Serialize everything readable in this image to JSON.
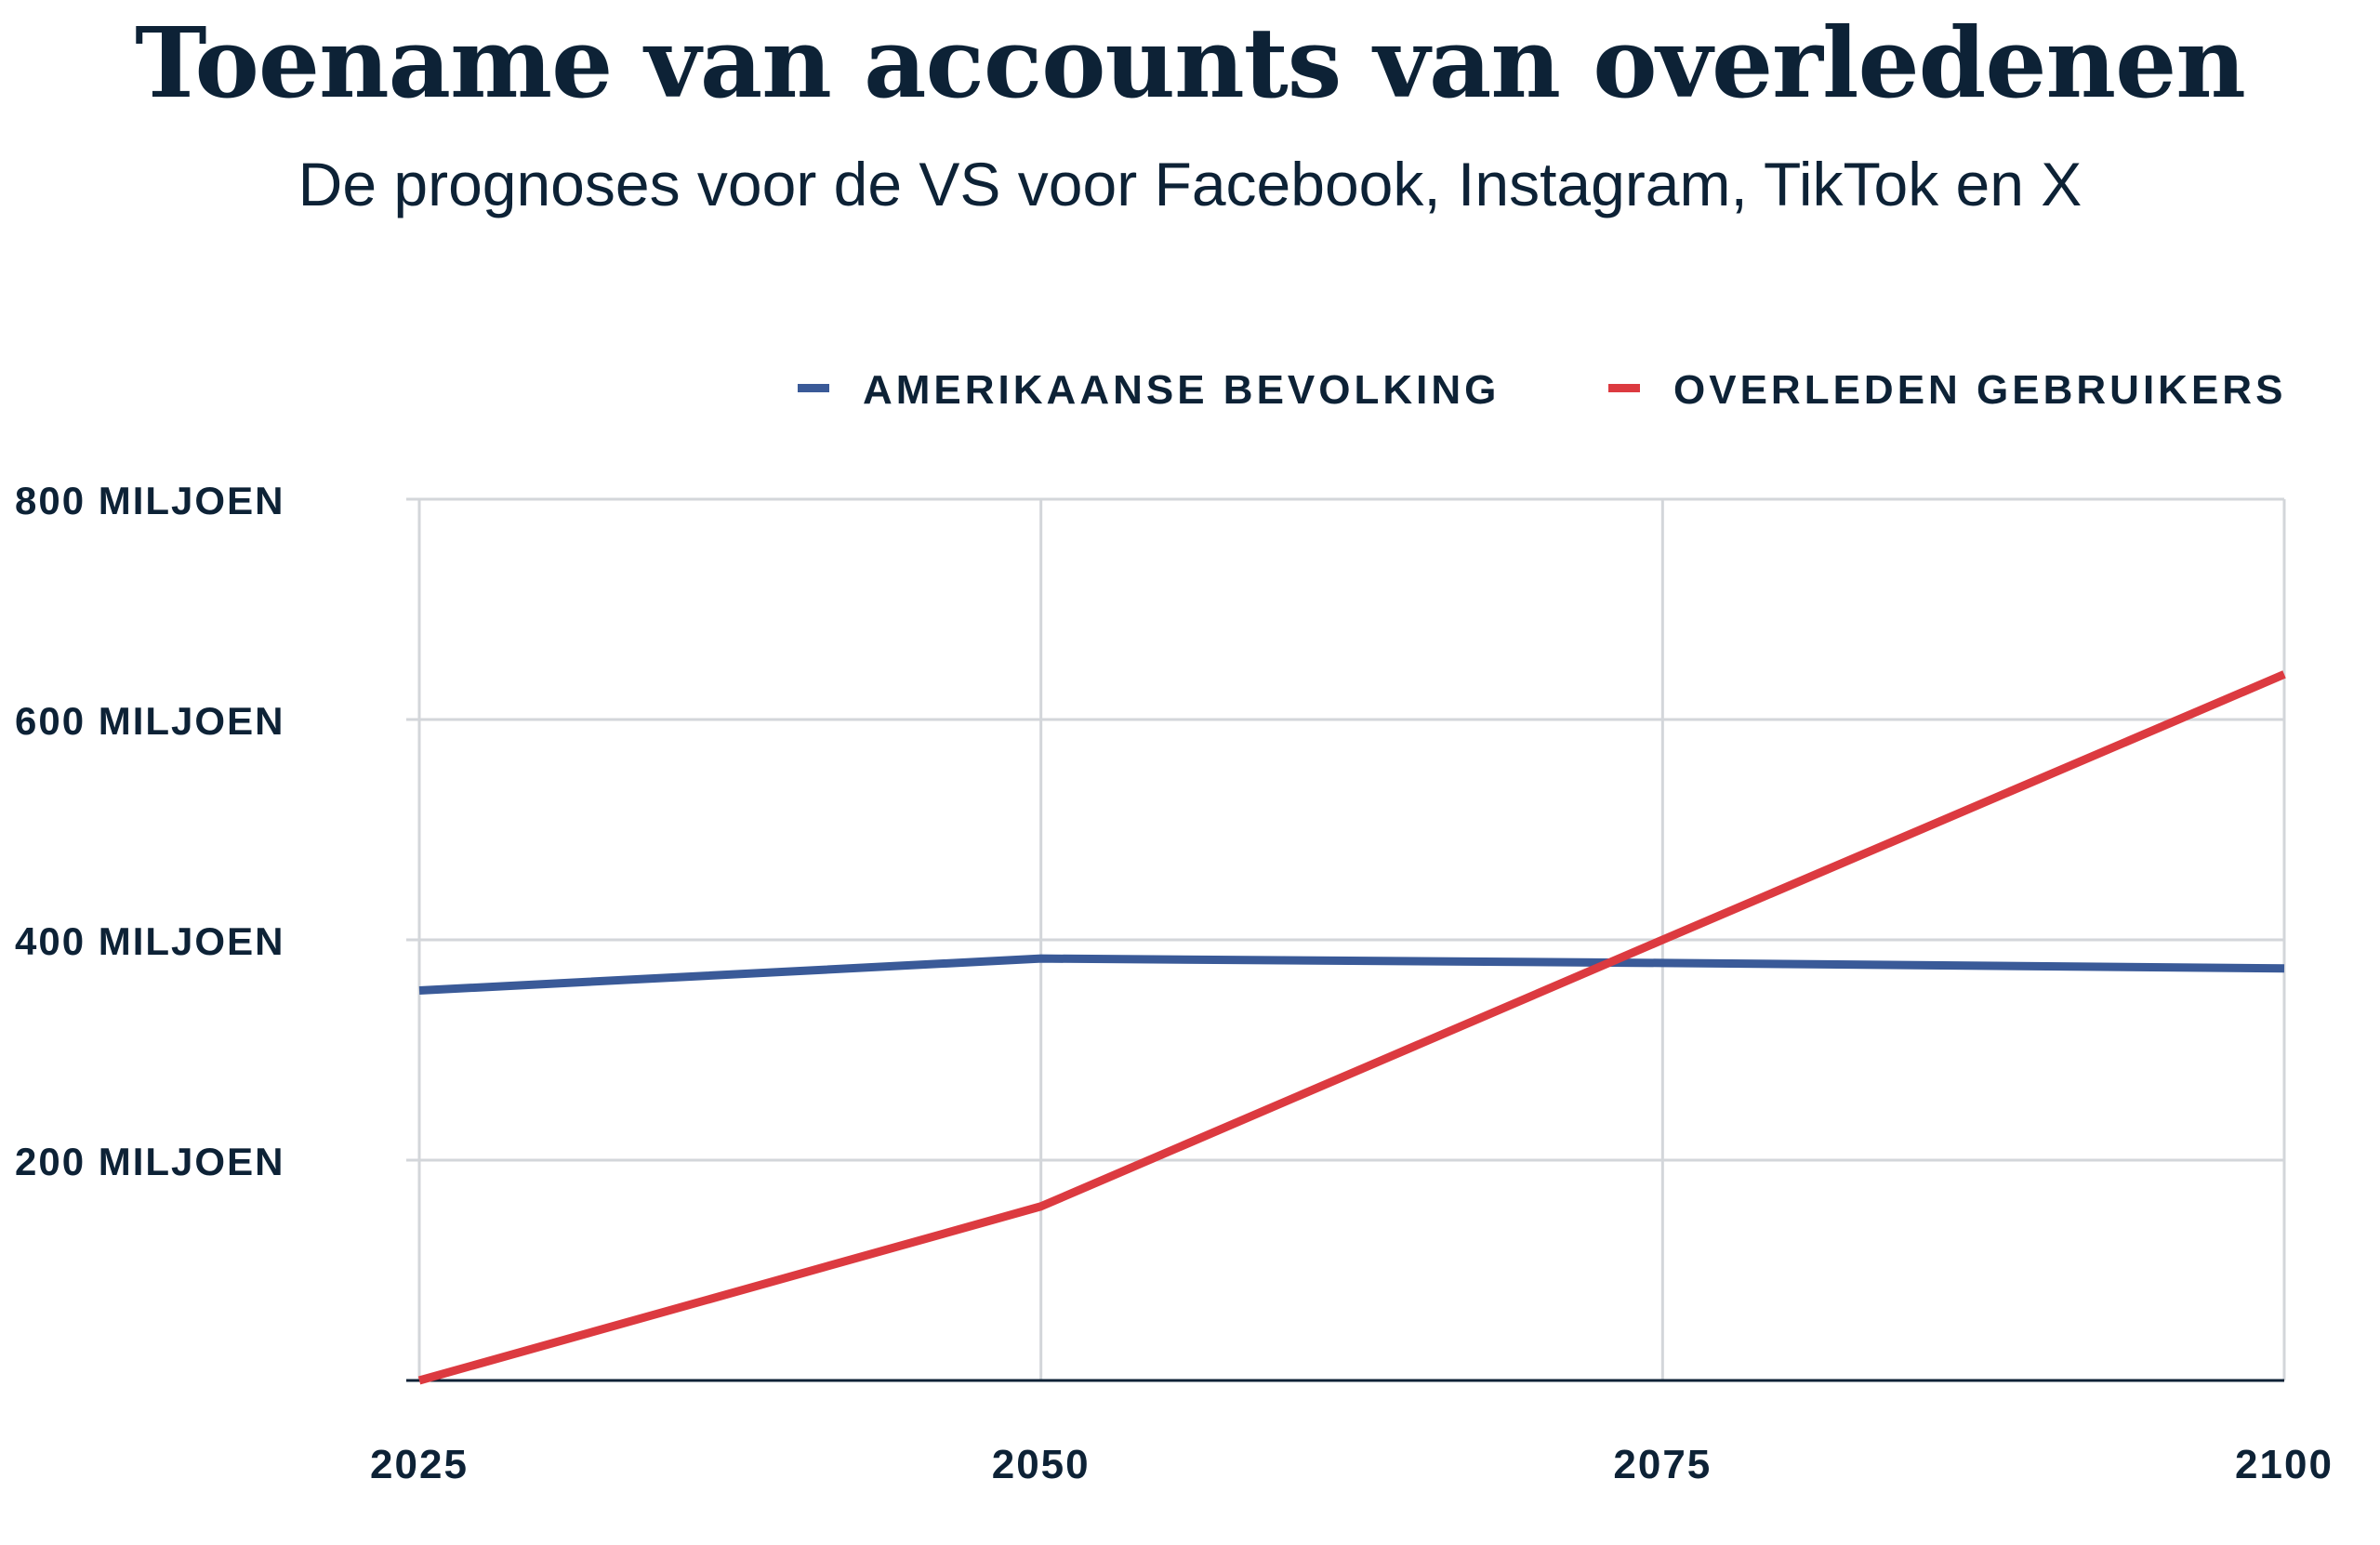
{
  "title": "Toename van accounts van overledenen",
  "subtitle": "De prognoses voor de VS voor Facebook, Instagram, TikTok en X",
  "chart_data": {
    "type": "line",
    "title": "Toename van accounts van overledenen",
    "subtitle": "De prognoses voor de VS voor Facebook, Instagram, TikTok en X",
    "x": [
      2025,
      2050,
      2075,
      2100
    ],
    "x_tick_labels": [
      "2025",
      "2050",
      "2075",
      "2100"
    ],
    "y_ticks": [
      200,
      400,
      600,
      800
    ],
    "y_tick_labels": [
      "200 MILJOEN",
      "400 MILJOEN",
      "600 MILJOEN",
      "800 MILJOEN"
    ],
    "ylim": [
      0,
      800
    ],
    "xlim": [
      2025,
      2100
    ],
    "grid": true,
    "legend_position": "top-right",
    "series": [
      {
        "name": "AMERIKAANSE BEVOLKING",
        "color": "#3a5a98",
        "values": [
          354,
          383,
          379,
          374
        ]
      },
      {
        "name": "OVERLEDEN GEBRUIKERS",
        "color": "#dc3a40",
        "values": [
          0,
          158,
          400,
          641
        ]
      }
    ]
  }
}
